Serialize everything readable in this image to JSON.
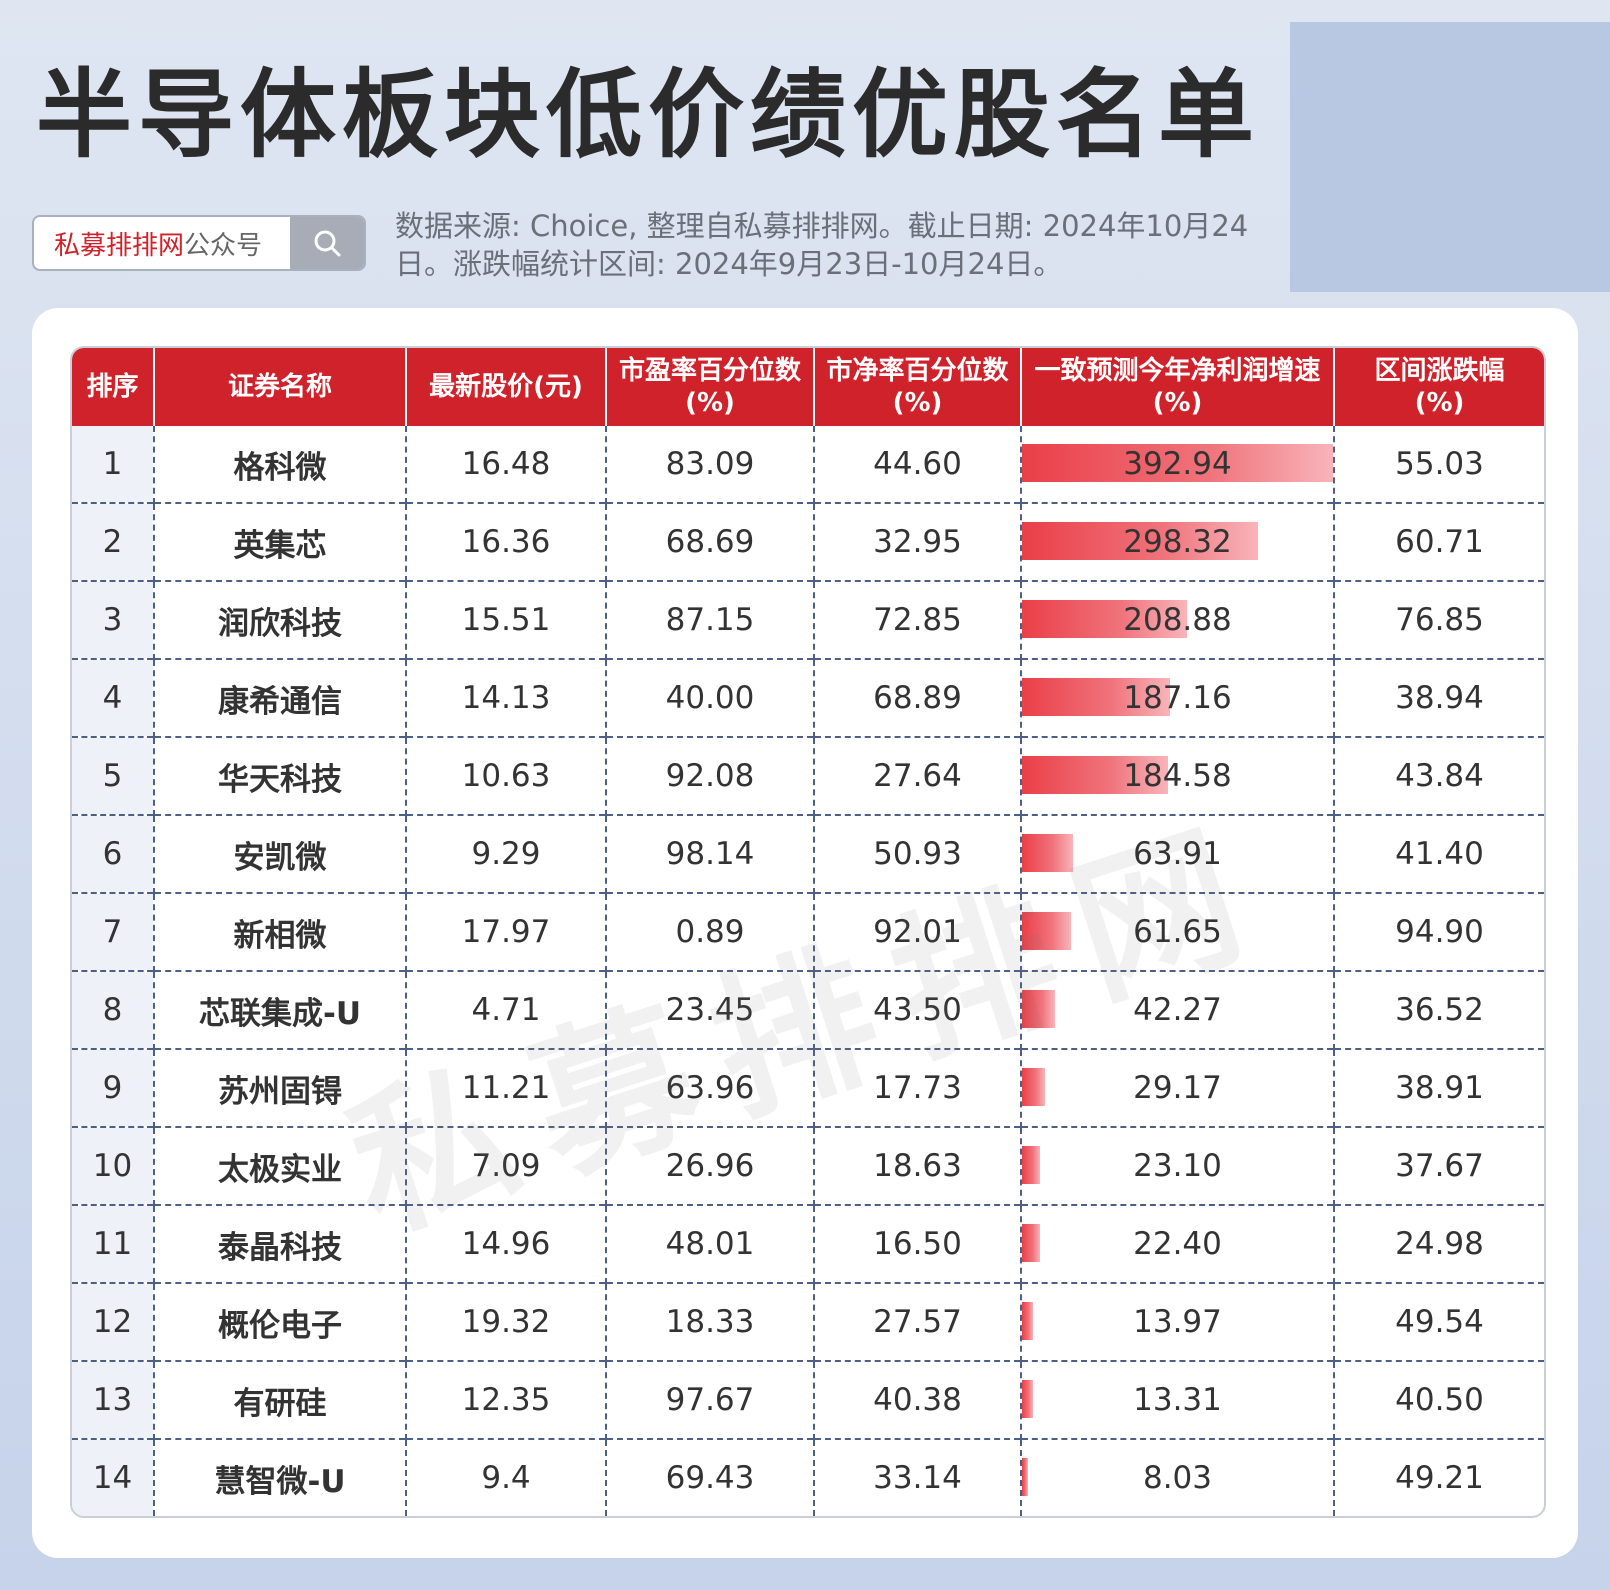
{
  "title": "半导体板块低价绩优股名单",
  "search": {
    "brand": "私募排排网",
    "suffix": "公众号"
  },
  "source_note": "数据来源: Choice, 整理自私募排排网。截止日期: 2024年10月24日。涨跌幅统计区间: 2024年9月23日-10月24日。",
  "watermark": "私募排排网",
  "table": {
    "headers": {
      "rank": "排序",
      "name": "证券名称",
      "price": "最新股价(元)",
      "pe_line1": "市盈率百分位数",
      "pe_line2": "(%)",
      "pb_line1": "市净率百分位数",
      "pb_line2": "(%)",
      "growth_line1": "一致预测今年净利润增速",
      "growth_line2": "(%)",
      "change_line1": "区间涨跌幅",
      "change_line2": "(%)"
    },
    "growth_max": 392.94,
    "bar_color": "#ea3f48",
    "header_color": "#d0222a",
    "rows": [
      {
        "rank": "1",
        "name": "格科微",
        "price": "16.48",
        "pe": "83.09",
        "pb": "44.60",
        "growth": "392.94",
        "change": "55.03"
      },
      {
        "rank": "2",
        "name": "英集芯",
        "price": "16.36",
        "pe": "68.69",
        "pb": "32.95",
        "growth": "298.32",
        "change": "60.71"
      },
      {
        "rank": "3",
        "name": "润欣科技",
        "price": "15.51",
        "pe": "87.15",
        "pb": "72.85",
        "growth": "208.88",
        "change": "76.85"
      },
      {
        "rank": "4",
        "name": "康希通信",
        "price": "14.13",
        "pe": "40.00",
        "pb": "68.89",
        "growth": "187.16",
        "change": "38.94"
      },
      {
        "rank": "5",
        "name": "华天科技",
        "price": "10.63",
        "pe": "92.08",
        "pb": "27.64",
        "growth": "184.58",
        "change": "43.84"
      },
      {
        "rank": "6",
        "name": "安凯微",
        "price": "9.29",
        "pe": "98.14",
        "pb": "50.93",
        "growth": "63.91",
        "change": "41.40"
      },
      {
        "rank": "7",
        "name": "新相微",
        "price": "17.97",
        "pe": "0.89",
        "pb": "92.01",
        "growth": "61.65",
        "change": "94.90"
      },
      {
        "rank": "8",
        "name": "芯联集成-U",
        "price": "4.71",
        "pe": "23.45",
        "pb": "43.50",
        "growth": "42.27",
        "change": "36.52"
      },
      {
        "rank": "9",
        "name": "苏州固锝",
        "price": "11.21",
        "pe": "63.96",
        "pb": "17.73",
        "growth": "29.17",
        "change": "38.91"
      },
      {
        "rank": "10",
        "name": "太极实业",
        "price": "7.09",
        "pe": "26.96",
        "pb": "18.63",
        "growth": "23.10",
        "change": "37.67"
      },
      {
        "rank": "11",
        "name": "泰晶科技",
        "price": "14.96",
        "pe": "48.01",
        "pb": "16.50",
        "growth": "22.40",
        "change": "24.98"
      },
      {
        "rank": "12",
        "name": "概伦电子",
        "price": "19.32",
        "pe": "18.33",
        "pb": "27.57",
        "growth": "13.97",
        "change": "49.54"
      },
      {
        "rank": "13",
        "name": "有研硅",
        "price": "12.35",
        "pe": "97.67",
        "pb": "40.38",
        "growth": "13.31",
        "change": "40.50"
      },
      {
        "rank": "14",
        "name": "慧智微-U",
        "price": "9.4",
        "pe": "69.43",
        "pb": "33.14",
        "growth": "8.03",
        "change": "49.21"
      }
    ]
  }
}
